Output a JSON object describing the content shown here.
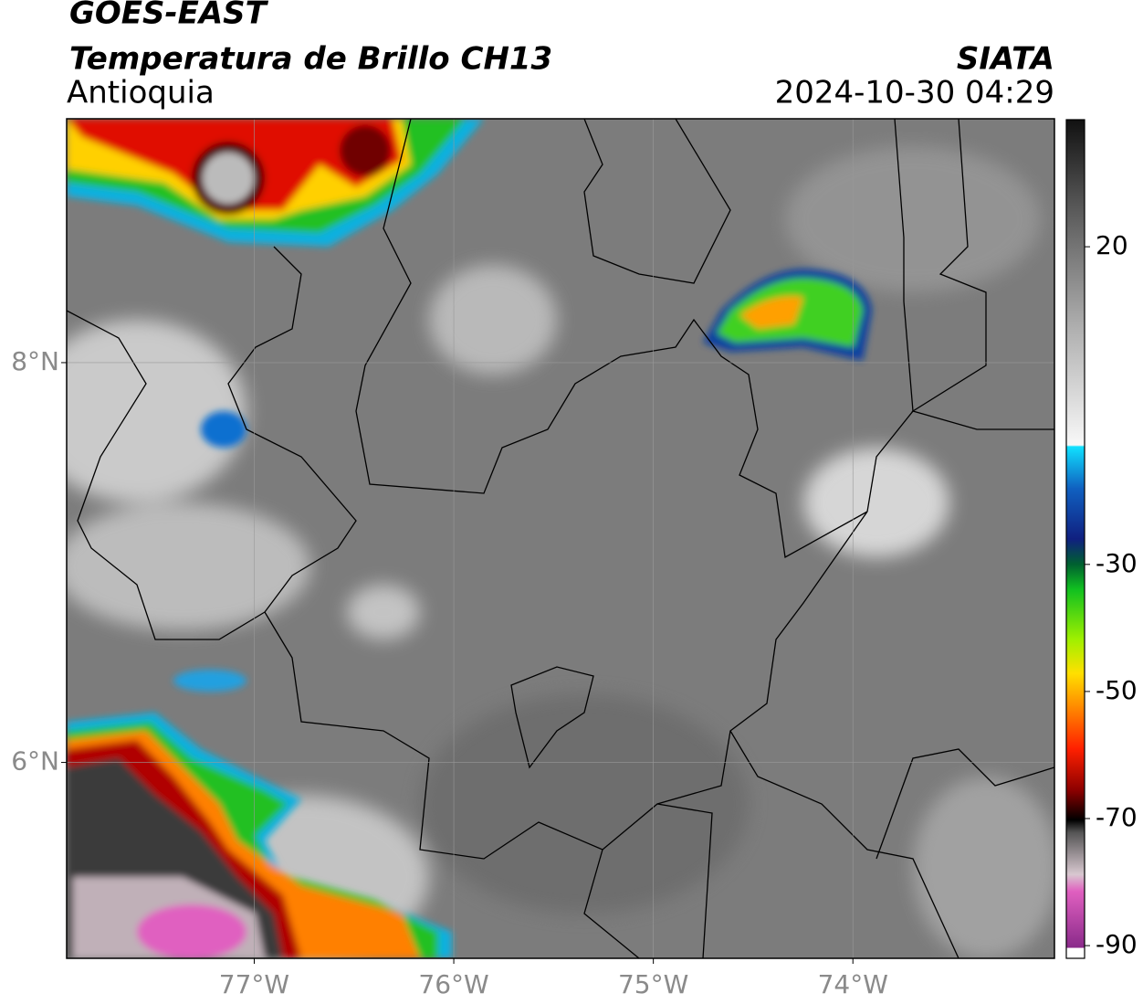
{
  "header": {
    "title": "GOES-EAST",
    "subtitle": "Temperatura de Brillo CH13",
    "region": "Antioquia",
    "source": "SIATA",
    "timestamp": "2024-10-30 04:29"
  },
  "map": {
    "xlim": [
      -77.94,
      -72.99
    ],
    "ylim": [
      5.02,
      9.22
    ],
    "xticks": [
      {
        "value": -77,
        "label": "77°W"
      },
      {
        "value": -76,
        "label": "76°W"
      },
      {
        "value": -75,
        "label": "75°W"
      },
      {
        "value": -74,
        "label": "74°W"
      }
    ],
    "yticks": [
      {
        "value": 8,
        "label": "8°N"
      },
      {
        "value": 6,
        "label": "6°N"
      }
    ]
  },
  "colorbar": {
    "lim": [
      -92,
      40
    ],
    "ticks": [
      20,
      -30,
      -50,
      -70,
      -90
    ]
  }
}
